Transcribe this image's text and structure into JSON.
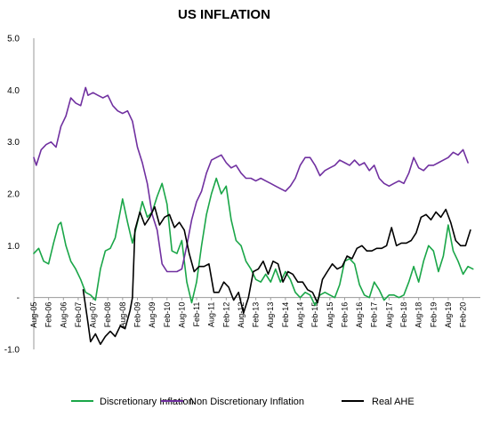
{
  "chart_data": {
    "type": "line",
    "title": "US INFLATION",
    "xlabel": "",
    "ylabel": "",
    "ylim": [
      -1.0,
      5.0
    ],
    "yticks": [
      "5.0",
      "4.0",
      "3.0",
      "2.0",
      "1.0",
      "-",
      "-1.0"
    ],
    "ytick_values": [
      5,
      4,
      3,
      2,
      1,
      0,
      -1
    ],
    "x_range": [
      "2005-08",
      "2020-09"
    ],
    "xticks": [
      "Aug-05",
      "Feb-06",
      "Aug-06",
      "Feb-07",
      "Aug-07",
      "Feb-08",
      "Aug-08",
      "Feb-09",
      "Aug-09",
      "Feb-10",
      "Aug-10",
      "Feb-11",
      "Aug-11",
      "Feb-12",
      "Aug-12",
      "Feb-13",
      "Aug-13",
      "Feb-14",
      "Aug-14",
      "Feb-15",
      "Aug-15",
      "Feb-16",
      "Aug-16",
      "Feb-17",
      "Aug-17",
      "Feb-18",
      "Aug-18",
      "Feb-19",
      "Aug-19",
      "Feb-20"
    ],
    "grid": false,
    "legend": "bottom",
    "series": [
      {
        "name": "Discretionary Inflation",
        "color": "#1aa648",
        "points": [
          [
            "2005-08",
            0.85
          ],
          [
            "2005-10",
            0.95
          ],
          [
            "2005-12",
            0.7
          ],
          [
            "2006-02",
            0.65
          ],
          [
            "2006-04",
            1.05
          ],
          [
            "2006-06",
            1.4
          ],
          [
            "2006-07",
            1.45
          ],
          [
            "2006-09",
            1.0
          ],
          [
            "2006-11",
            0.7
          ],
          [
            "2007-01",
            0.55
          ],
          [
            "2007-03",
            0.35
          ],
          [
            "2007-05",
            0.1
          ],
          [
            "2007-07",
            0.05
          ],
          [
            "2007-09",
            -0.05
          ],
          [
            "2007-11",
            0.55
          ],
          [
            "2008-01",
            0.9
          ],
          [
            "2008-03",
            0.95
          ],
          [
            "2008-05",
            1.15
          ],
          [
            "2008-07",
            1.65
          ],
          [
            "2008-08",
            1.9
          ],
          [
            "2008-10",
            1.45
          ],
          [
            "2008-12",
            1.05
          ],
          [
            "2009-02",
            1.45
          ],
          [
            "2009-04",
            1.85
          ],
          [
            "2009-06",
            1.55
          ],
          [
            "2009-08",
            1.65
          ],
          [
            "2009-10",
            1.95
          ],
          [
            "2009-12",
            2.2
          ],
          [
            "2010-02",
            1.8
          ],
          [
            "2010-04",
            0.9
          ],
          [
            "2010-06",
            0.85
          ],
          [
            "2010-08",
            1.1
          ],
          [
            "2010-10",
            0.3
          ],
          [
            "2010-12",
            -0.1
          ],
          [
            "2011-02",
            0.3
          ],
          [
            "2011-04",
            1.0
          ],
          [
            "2011-06",
            1.6
          ],
          [
            "2011-08",
            2.0
          ],
          [
            "2011-10",
            2.3
          ],
          [
            "2011-12",
            2.0
          ],
          [
            "2012-02",
            2.15
          ],
          [
            "2012-04",
            1.5
          ],
          [
            "2012-06",
            1.1
          ],
          [
            "2012-08",
            1.0
          ],
          [
            "2012-10",
            0.7
          ],
          [
            "2012-12",
            0.55
          ],
          [
            "2013-02",
            0.35
          ],
          [
            "2013-04",
            0.3
          ],
          [
            "2013-06",
            0.45
          ],
          [
            "2013-08",
            0.3
          ],
          [
            "2013-10",
            0.55
          ],
          [
            "2013-12",
            0.3
          ],
          [
            "2014-02",
            0.5
          ],
          [
            "2014-04",
            0.35
          ],
          [
            "2014-06",
            0.1
          ],
          [
            "2014-08",
            0.0
          ],
          [
            "2014-10",
            0.1
          ],
          [
            "2014-12",
            0.05
          ],
          [
            "2015-02",
            -0.15
          ],
          [
            "2015-04",
            0.05
          ],
          [
            "2015-06",
            0.1
          ],
          [
            "2015-08",
            0.05
          ],
          [
            "2015-10",
            0.0
          ],
          [
            "2015-12",
            0.25
          ],
          [
            "2016-02",
            0.7
          ],
          [
            "2016-04",
            0.75
          ],
          [
            "2016-06",
            0.65
          ],
          [
            "2016-08",
            0.25
          ],
          [
            "2016-10",
            0.05
          ],
          [
            "2016-12",
            0.0
          ],
          [
            "2017-02",
            0.3
          ],
          [
            "2017-04",
            0.15
          ],
          [
            "2017-06",
            -0.05
          ],
          [
            "2017-08",
            0.05
          ],
          [
            "2017-10",
            0.05
          ],
          [
            "2017-12",
            0.0
          ],
          [
            "2018-02",
            0.05
          ],
          [
            "2018-04",
            0.3
          ],
          [
            "2018-06",
            0.6
          ],
          [
            "2018-08",
            0.3
          ],
          [
            "2018-10",
            0.7
          ],
          [
            "2018-12",
            1.0
          ],
          [
            "2019-02",
            0.9
          ],
          [
            "2019-04",
            0.5
          ],
          [
            "2019-06",
            0.8
          ],
          [
            "2019-08",
            1.4
          ],
          [
            "2019-10",
            0.9
          ],
          [
            "2019-12",
            0.7
          ],
          [
            "2020-02",
            0.45
          ],
          [
            "2020-04",
            0.6
          ],
          [
            "2020-06",
            0.55
          ]
        ]
      },
      {
        "name": "Non Discretionary Inflation",
        "color": "#7030a0",
        "points": [
          [
            "2005-08",
            2.7
          ],
          [
            "2005-09",
            2.55
          ],
          [
            "2005-11",
            2.85
          ],
          [
            "2006-01",
            2.95
          ],
          [
            "2006-03",
            3.0
          ],
          [
            "2006-05",
            2.9
          ],
          [
            "2006-07",
            3.3
          ],
          [
            "2006-09",
            3.5
          ],
          [
            "2006-11",
            3.85
          ],
          [
            "2007-01",
            3.75
          ],
          [
            "2007-03",
            3.7
          ],
          [
            "2007-05",
            4.05
          ],
          [
            "2007-06",
            3.9
          ],
          [
            "2007-08",
            3.95
          ],
          [
            "2007-10",
            3.9
          ],
          [
            "2007-12",
            3.85
          ],
          [
            "2008-02",
            3.9
          ],
          [
            "2008-04",
            3.7
          ],
          [
            "2008-06",
            3.6
          ],
          [
            "2008-08",
            3.55
          ],
          [
            "2008-10",
            3.6
          ],
          [
            "2008-12",
            3.4
          ],
          [
            "2009-02",
            2.9
          ],
          [
            "2009-04",
            2.6
          ],
          [
            "2009-06",
            2.2
          ],
          [
            "2009-08",
            1.6
          ],
          [
            "2009-10",
            1.3
          ],
          [
            "2009-12",
            0.65
          ],
          [
            "2010-02",
            0.5
          ],
          [
            "2010-04",
            0.5
          ],
          [
            "2010-06",
            0.5
          ],
          [
            "2010-08",
            0.55
          ],
          [
            "2010-10",
            1.0
          ],
          [
            "2010-12",
            1.5
          ],
          [
            "2011-02",
            1.85
          ],
          [
            "2011-04",
            2.05
          ],
          [
            "2011-06",
            2.4
          ],
          [
            "2011-08",
            2.65
          ],
          [
            "2011-10",
            2.7
          ],
          [
            "2011-12",
            2.75
          ],
          [
            "2012-02",
            2.6
          ],
          [
            "2012-04",
            2.5
          ],
          [
            "2012-06",
            2.55
          ],
          [
            "2012-08",
            2.4
          ],
          [
            "2012-10",
            2.3
          ],
          [
            "2012-12",
            2.3
          ],
          [
            "2013-02",
            2.25
          ],
          [
            "2013-04",
            2.3
          ],
          [
            "2013-06",
            2.25
          ],
          [
            "2013-08",
            2.2
          ],
          [
            "2013-10",
            2.15
          ],
          [
            "2013-12",
            2.1
          ],
          [
            "2014-02",
            2.05
          ],
          [
            "2014-04",
            2.15
          ],
          [
            "2014-06",
            2.3
          ],
          [
            "2014-08",
            2.55
          ],
          [
            "2014-10",
            2.7
          ],
          [
            "2014-12",
            2.7
          ],
          [
            "2015-02",
            2.55
          ],
          [
            "2015-04",
            2.35
          ],
          [
            "2015-06",
            2.45
          ],
          [
            "2015-08",
            2.5
          ],
          [
            "2015-10",
            2.55
          ],
          [
            "2015-12",
            2.65
          ],
          [
            "2016-02",
            2.6
          ],
          [
            "2016-04",
            2.55
          ],
          [
            "2016-06",
            2.65
          ],
          [
            "2016-08",
            2.55
          ],
          [
            "2016-10",
            2.6
          ],
          [
            "2016-12",
            2.45
          ],
          [
            "2017-02",
            2.55
          ],
          [
            "2017-04",
            2.3
          ],
          [
            "2017-06",
            2.2
          ],
          [
            "2017-08",
            2.15
          ],
          [
            "2017-10",
            2.2
          ],
          [
            "2017-12",
            2.25
          ],
          [
            "2018-02",
            2.2
          ],
          [
            "2018-04",
            2.4
          ],
          [
            "2018-06",
            2.7
          ],
          [
            "2018-08",
            2.5
          ],
          [
            "2018-10",
            2.45
          ],
          [
            "2018-12",
            2.55
          ],
          [
            "2019-02",
            2.55
          ],
          [
            "2019-04",
            2.6
          ],
          [
            "2019-06",
            2.65
          ],
          [
            "2019-08",
            2.7
          ],
          [
            "2019-10",
            2.8
          ],
          [
            "2019-12",
            2.75
          ],
          [
            "2020-02",
            2.85
          ],
          [
            "2020-04",
            2.6
          ]
        ]
      },
      {
        "name": "Real AHE",
        "color": "#000000",
        "points": [
          [
            "2007-04",
            0.15
          ],
          [
            "2007-06",
            -0.5
          ],
          [
            "2007-07",
            -0.85
          ],
          [
            "2007-09",
            -0.7
          ],
          [
            "2007-11",
            -0.9
          ],
          [
            "2008-01",
            -0.75
          ],
          [
            "2008-03",
            -0.65
          ],
          [
            "2008-05",
            -0.75
          ],
          [
            "2008-07",
            -0.55
          ],
          [
            "2008-09",
            -0.6
          ],
          [
            "2008-11",
            -0.25
          ],
          [
            "2008-12",
            0.0
          ],
          [
            "2009-01",
            1.3
          ],
          [
            "2009-03",
            1.65
          ],
          [
            "2009-05",
            1.4
          ],
          [
            "2009-07",
            1.55
          ],
          [
            "2009-09",
            1.75
          ],
          [
            "2009-11",
            1.4
          ],
          [
            "2010-01",
            1.55
          ],
          [
            "2010-03",
            1.6
          ],
          [
            "2010-05",
            1.35
          ],
          [
            "2010-07",
            1.45
          ],
          [
            "2010-09",
            1.3
          ],
          [
            "2010-11",
            0.85
          ],
          [
            "2011-01",
            0.5
          ],
          [
            "2011-03",
            0.6
          ],
          [
            "2011-05",
            0.6
          ],
          [
            "2011-07",
            0.65
          ],
          [
            "2011-09",
            0.1
          ],
          [
            "2011-11",
            0.1
          ],
          [
            "2012-01",
            0.3
          ],
          [
            "2012-03",
            0.2
          ],
          [
            "2012-05",
            -0.05
          ],
          [
            "2012-07",
            0.1
          ],
          [
            "2012-09",
            -0.3
          ],
          [
            "2012-11",
            0.0
          ],
          [
            "2013-01",
            0.5
          ],
          [
            "2013-03",
            0.55
          ],
          [
            "2013-05",
            0.7
          ],
          [
            "2013-07",
            0.45
          ],
          [
            "2013-09",
            0.7
          ],
          [
            "2013-11",
            0.65
          ],
          [
            "2014-01",
            0.3
          ],
          [
            "2014-03",
            0.5
          ],
          [
            "2014-05",
            0.45
          ],
          [
            "2014-07",
            0.3
          ],
          [
            "2014-09",
            0.3
          ],
          [
            "2014-11",
            0.15
          ],
          [
            "2015-01",
            0.1
          ],
          [
            "2015-03",
            -0.1
          ],
          [
            "2015-05",
            0.35
          ],
          [
            "2015-07",
            0.5
          ],
          [
            "2015-09",
            0.65
          ],
          [
            "2015-11",
            0.55
          ],
          [
            "2016-01",
            0.6
          ],
          [
            "2016-03",
            0.8
          ],
          [
            "2016-05",
            0.75
          ],
          [
            "2016-07",
            0.95
          ],
          [
            "2016-09",
            1.0
          ],
          [
            "2016-11",
            0.9
          ],
          [
            "2017-01",
            0.9
          ],
          [
            "2017-03",
            0.95
          ],
          [
            "2017-05",
            0.95
          ],
          [
            "2017-07",
            1.0
          ],
          [
            "2017-09",
            1.35
          ],
          [
            "2017-11",
            1.0
          ],
          [
            "2018-01",
            1.05
          ],
          [
            "2018-03",
            1.05
          ],
          [
            "2018-05",
            1.1
          ],
          [
            "2018-07",
            1.25
          ],
          [
            "2018-09",
            1.55
          ],
          [
            "2018-11",
            1.6
          ],
          [
            "2019-01",
            1.5
          ],
          [
            "2019-03",
            1.65
          ],
          [
            "2019-05",
            1.55
          ],
          [
            "2019-07",
            1.7
          ],
          [
            "2019-09",
            1.45
          ],
          [
            "2019-11",
            1.1
          ],
          [
            "2020-01",
            1.0
          ],
          [
            "2020-03",
            1.0
          ],
          [
            "2020-05",
            1.3
          ]
        ]
      }
    ]
  }
}
